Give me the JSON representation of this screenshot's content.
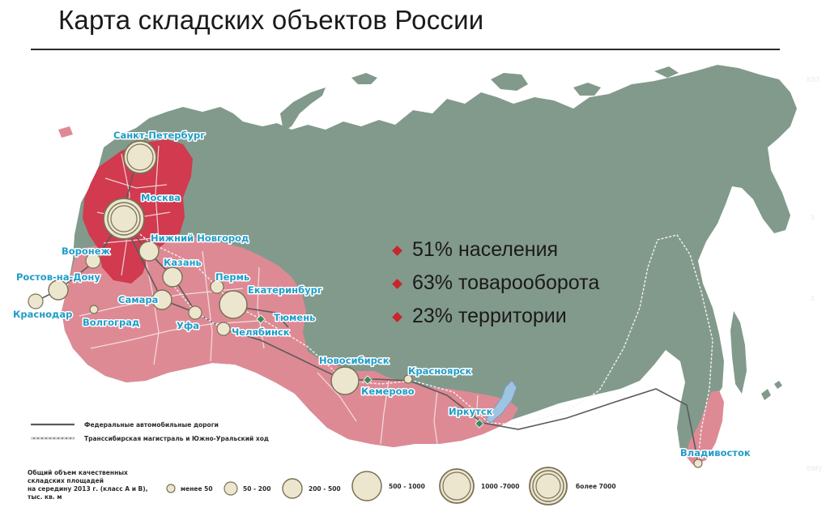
{
  "title": "Карта складских объектов России",
  "stats": [
    "51% населения",
    "63% товарооборота",
    "23% территории"
  ],
  "colors": {
    "russia_land": "#829a8b",
    "warehouse_region": "#de8a95",
    "central_region": "#d13a4f",
    "circle_fill": "#ece6cf",
    "label": "#1f9dc8",
    "bullet": "#c8262c",
    "lake": "#9fc4e0"
  },
  "cities": [
    {
      "name": "Санкт-Петербург",
      "size": "1000 -7000"
    },
    {
      "name": "Москва",
      "size": "более 7000"
    },
    {
      "name": "Нижний Новгород",
      "size": "200 - 500"
    },
    {
      "name": "Воронеж",
      "size": "50 - 200"
    },
    {
      "name": "Казань",
      "size": "200 - 500"
    },
    {
      "name": "Ростов-на-Дону",
      "size": "200 - 500"
    },
    {
      "name": "Пермь",
      "size": "50 - 200"
    },
    {
      "name": "Екатеринбург",
      "size": "500 - 1000"
    },
    {
      "name": "Самара",
      "size": "200 - 500"
    },
    {
      "name": "Краснодар",
      "size": "50 - 200"
    },
    {
      "name": "Волгоград",
      "size": "менее 50"
    },
    {
      "name": "Уфа",
      "size": "50 - 200"
    },
    {
      "name": "Тюмень",
      "size": ""
    },
    {
      "name": "Челябинск",
      "size": "50 - 200"
    },
    {
      "name": "Новосибирск",
      "size": "500 - 1000"
    },
    {
      "name": "Красноярск",
      "size": "менее 50"
    },
    {
      "name": "Кемерово",
      "size": ""
    },
    {
      "name": "Иркутск",
      "size": ""
    },
    {
      "name": "Владивосток",
      "size": "менее 50"
    }
  ],
  "legend": {
    "roads": "Федеральные автомобильные дороги",
    "rail": "Транссибирская магистраль и Южно-Уральский ход",
    "volume_caption": [
      "Общий объем качественных",
      "складских площадей",
      "на середину 2013 г. (класс А и В),",
      "тыс. кв. м"
    ],
    "sizes": [
      "менее 50",
      "50 - 200",
      "200 - 500",
      "500 - 1000",
      "1000 -7000",
      "более 7000"
    ]
  },
  "faint_edge_text": [
    "каз",
    "э",
    "э",
    "ему"
  ]
}
